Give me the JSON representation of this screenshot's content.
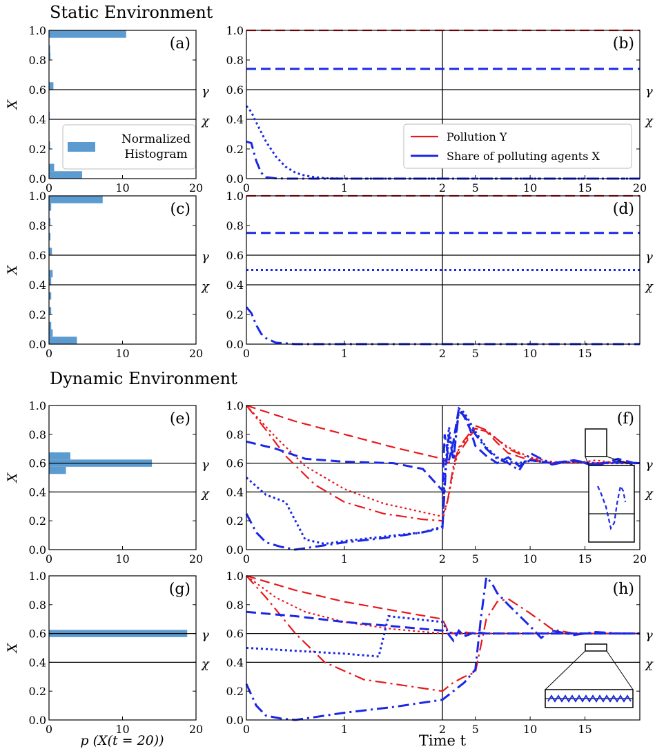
{
  "sections": {
    "static_title": "Static Environment",
    "dynamic_title": "Dynamic Environment"
  },
  "labels": {
    "x_axis_hist": "p (X(t = 20))",
    "x_axis_time": "Time t",
    "y_axis": "X",
    "gamma": "γ",
    "chi": "χ"
  },
  "colors": {
    "hist_bar": "#5b9bd0",
    "pollution": "#e8161b",
    "share": "#1a27e6",
    "axis": "#000000"
  },
  "legends": {
    "hist": "Normalized\nHistogram",
    "pollution": "Pollution Y",
    "share": "Share of polluting agents X"
  },
  "chart_data": [
    {
      "id": "a",
      "type": "bar",
      "orientation": "horizontal",
      "xlim": [
        0,
        20
      ],
      "ylim": [
        0,
        1.0
      ],
      "x_ticks": [
        "0",
        "10",
        "20"
      ],
      "y_ticks": [
        "0.0",
        "0.2",
        "0.4",
        "0.6",
        "0.8",
        "1.0"
      ],
      "bin_width": 0.05,
      "bins": [
        [
          0.0,
          4.5
        ],
        [
          0.05,
          0.7
        ],
        [
          0.2,
          0.15
        ],
        [
          0.4,
          0.1
        ],
        [
          0.6,
          0.6
        ],
        [
          0.8,
          0.2
        ],
        [
          0.85,
          0.15
        ],
        [
          0.95,
          10.5
        ]
      ],
      "h_lines": [
        {
          "y": 0.6,
          "label": "γ"
        },
        {
          "y": 0.4,
          "label": "χ"
        }
      ],
      "legend": "Normalized\nHistogram"
    },
    {
      "id": "b",
      "type": "line",
      "x_ticks": [
        "0",
        "1",
        "2",
        "5",
        "10",
        "15",
        "20"
      ],
      "y_ticks": [
        "0.0",
        "0.2",
        "0.4",
        "0.6",
        "0.8",
        "1.0"
      ],
      "ylim": [
        0,
        1.0
      ],
      "series": [
        {
          "color": "pollution",
          "style": "dashed",
          "x": [
            0,
            20
          ],
          "y": [
            1.0,
            1.0
          ]
        },
        {
          "color": "share",
          "style": "dashed",
          "x": [
            0,
            20
          ],
          "y": [
            0.74,
            0.74
          ]
        },
        {
          "color": "share",
          "style": "dotted",
          "x": [
            0,
            0.05,
            0.1,
            0.2,
            0.3,
            0.4,
            0.5,
            0.6,
            0.7,
            0.8,
            1.0,
            20
          ],
          "y": [
            0.49,
            0.45,
            0.38,
            0.25,
            0.15,
            0.08,
            0.04,
            0.02,
            0.01,
            0.003,
            0.0,
            0.0
          ]
        },
        {
          "color": "share",
          "style": "dashdot",
          "x": [
            0,
            0.05,
            0.1,
            0.15,
            0.2,
            0.3,
            0.4,
            20
          ],
          "y": [
            0.25,
            0.24,
            0.12,
            0.04,
            0.01,
            0.002,
            0.0,
            0.0
          ]
        }
      ],
      "legend": [
        "Pollution Y",
        "Share of polluting agents X"
      ]
    },
    {
      "id": "c",
      "type": "bar",
      "orientation": "horizontal",
      "xlim": [
        0,
        20
      ],
      "ylim": [
        0,
        1.0
      ],
      "x_ticks": [
        "0",
        "10",
        "20"
      ],
      "y_ticks": [
        "0.0",
        "0.2",
        "0.4",
        "0.6",
        "0.8",
        "1.0"
      ],
      "bin_width": 0.05,
      "bins": [
        [
          0.0,
          3.8
        ],
        [
          0.05,
          0.5
        ],
        [
          0.1,
          0.3
        ],
        [
          0.2,
          0.3
        ],
        [
          0.3,
          0.3
        ],
        [
          0.4,
          0.3
        ],
        [
          0.45,
          0.5
        ],
        [
          0.6,
          0.4
        ],
        [
          0.7,
          0.2
        ],
        [
          0.8,
          0.2
        ],
        [
          0.9,
          0.3
        ],
        [
          0.95,
          7.3
        ]
      ],
      "h_lines": [
        {
          "y": 0.6,
          "label": "γ"
        },
        {
          "y": 0.4,
          "label": "χ"
        }
      ]
    },
    {
      "id": "d",
      "type": "line",
      "x_ticks": [
        "0",
        "1",
        "2",
        "5",
        "10",
        "15"
      ],
      "y_ticks": [
        "0.0",
        "0.2",
        "0.4",
        "0.6",
        "0.8",
        "1.0"
      ],
      "ylim": [
        0,
        1.0
      ],
      "series": [
        {
          "color": "pollution",
          "style": "dashed",
          "x": [
            0,
            20
          ],
          "y": [
            1.0,
            1.0
          ]
        },
        {
          "color": "share",
          "style": "dashed",
          "x": [
            0,
            20
          ],
          "y": [
            0.75,
            0.75
          ]
        },
        {
          "color": "share",
          "style": "dotted",
          "x": [
            0,
            20
          ],
          "y": [
            0.5,
            0.5
          ]
        },
        {
          "color": "share",
          "style": "dashdot",
          "x": [
            0,
            0.05,
            0.1,
            0.15,
            0.2,
            0.3,
            0.4,
            0.5,
            20
          ],
          "y": [
            0.25,
            0.21,
            0.13,
            0.07,
            0.04,
            0.01,
            0.005,
            0.0,
            0.0
          ]
        }
      ]
    },
    {
      "id": "e",
      "type": "bar",
      "orientation": "horizontal",
      "xlim": [
        0,
        20
      ],
      "ylim": [
        0,
        1.0
      ],
      "x_ticks": [
        "0",
        "10",
        "20"
      ],
      "y_ticks": [
        "0.0",
        "0.2",
        "0.4",
        "0.6",
        "0.8",
        "1.0"
      ],
      "bin_width": 0.05,
      "bins": [
        [
          0.525,
          2.3
        ],
        [
          0.575,
          14.0
        ],
        [
          0.625,
          2.9
        ]
      ],
      "h_lines": [
        {
          "y": 0.6,
          "label": "γ"
        },
        {
          "y": 0.4,
          "label": "χ"
        }
      ]
    },
    {
      "id": "f",
      "type": "line",
      "x_ticks": [
        "0",
        "1",
        "2",
        "5",
        "10",
        "15",
        "20"
      ],
      "y_ticks": [
        "0.0",
        "0.2",
        "0.4",
        "0.6",
        "0.8",
        "1.0"
      ],
      "ylim": [
        0,
        1.0
      ],
      "series": [
        {
          "color": "pollution",
          "style": "dashed",
          "x": [
            0,
            0.5,
            1.0,
            1.5,
            2.0,
            2.5,
            3.5,
            5,
            6,
            7,
            8,
            10,
            12,
            14,
            16,
            18,
            20
          ],
          "y": [
            1.0,
            0.89,
            0.8,
            0.71,
            0.63,
            0.6,
            0.67,
            0.84,
            0.82,
            0.74,
            0.67,
            0.62,
            0.6,
            0.62,
            0.59,
            0.61,
            0.6
          ]
        },
        {
          "color": "pollution",
          "style": "dotted",
          "x": [
            0,
            0.3,
            0.6,
            1.0,
            1.4,
            1.8,
            2.0,
            2.5,
            3,
            3.5,
            5,
            6,
            8,
            10,
            12,
            14,
            16,
            18,
            20
          ],
          "y": [
            1.0,
            0.78,
            0.58,
            0.42,
            0.32,
            0.26,
            0.23,
            0.34,
            0.55,
            0.7,
            0.84,
            0.82,
            0.71,
            0.64,
            0.61,
            0.6,
            0.62,
            0.6,
            0.6
          ]
        },
        {
          "color": "pollution",
          "style": "dashdot",
          "x": [
            0,
            0.2,
            0.4,
            0.7,
            1.0,
            1.4,
            1.8,
            2.0,
            2.5,
            3,
            3.5,
            5,
            6,
            8,
            10,
            12,
            14,
            16,
            18,
            20
          ],
          "y": [
            1.0,
            0.83,
            0.65,
            0.45,
            0.33,
            0.25,
            0.21,
            0.2,
            0.35,
            0.58,
            0.71,
            0.86,
            0.83,
            0.7,
            0.63,
            0.6,
            0.61,
            0.6,
            0.61,
            0.6
          ]
        },
        {
          "color": "share",
          "style": "dashed",
          "x": [
            0,
            0.3,
            0.6,
            1.0,
            1.5,
            1.8,
            2.0,
            2.2,
            2.6,
            3,
            3.5,
            4,
            4.5,
            5,
            6,
            7,
            8,
            9,
            10,
            12,
            14,
            16,
            18,
            20
          ],
          "y": [
            0.75,
            0.7,
            0.63,
            0.61,
            0.6,
            0.56,
            0.41,
            0.8,
            0.62,
            0.75,
            0.98,
            0.92,
            0.84,
            0.72,
            0.65,
            0.6,
            0.64,
            0.58,
            0.62,
            0.6,
            0.62,
            0.58,
            0.63,
            0.59
          ]
        },
        {
          "color": "share",
          "style": "dotted",
          "x": [
            0,
            0.2,
            0.4,
            0.6,
            0.8,
            1.0,
            1.4,
            1.8,
            2.0,
            2.2,
            2.6,
            3,
            3.5,
            4,
            5,
            6,
            7,
            8,
            9,
            10,
            12,
            14,
            16,
            18,
            20
          ],
          "y": [
            0.5,
            0.38,
            0.33,
            0.07,
            0.04,
            0.06,
            0.09,
            0.12,
            0.16,
            0.5,
            0.85,
            0.63,
            0.98,
            0.95,
            0.82,
            0.71,
            0.64,
            0.61,
            0.6,
            0.62,
            0.6,
            0.61,
            0.6,
            0.6,
            0.6
          ]
        },
        {
          "color": "share",
          "style": "dashdot",
          "x": [
            0,
            0.1,
            0.2,
            0.35,
            0.5,
            0.7,
            1.0,
            1.4,
            1.8,
            2.0,
            2.3,
            2.6,
            3,
            3.5,
            4,
            5,
            6,
            7,
            8,
            9,
            10,
            12,
            14,
            16,
            18,
            20
          ],
          "y": [
            0.25,
            0.12,
            0.05,
            0.02,
            0.0,
            0.02,
            0.05,
            0.08,
            0.12,
            0.15,
            0.55,
            0.8,
            0.62,
            0.96,
            0.93,
            0.8,
            0.7,
            0.63,
            0.6,
            0.55,
            0.67,
            0.59,
            0.62,
            0.59,
            0.61,
            0.6
          ]
        }
      ],
      "inset": true
    },
    {
      "id": "g",
      "type": "bar",
      "orientation": "horizontal",
      "xlim": [
        0,
        20
      ],
      "ylim": [
        0,
        1.0
      ],
      "x_ticks": [
        "0",
        "10",
        "20"
      ],
      "y_ticks": [
        "0.0",
        "0.2",
        "0.4",
        "0.6",
        "0.8",
        "1.0"
      ],
      "bin_width": 0.05,
      "bins": [
        [
          0.575,
          18.8
        ]
      ],
      "h_lines": [
        {
          "y": 0.6,
          "label": "γ"
        },
        {
          "y": 0.4,
          "label": "χ"
        }
      ]
    },
    {
      "id": "h",
      "type": "line",
      "x_ticks": [
        "0",
        "1",
        "2",
        "5",
        "10",
        "15"
      ],
      "y_ticks": [
        "0.0",
        "0.2",
        "0.4",
        "0.6",
        "0.8",
        "1.0"
      ],
      "ylim": [
        0,
        1.0
      ],
      "series": [
        {
          "color": "pollution",
          "style": "dashed",
          "x": [
            0,
            0.5,
            1.0,
            1.5,
            2.0,
            2.5,
            3,
            4,
            5,
            6,
            8,
            10,
            12,
            14,
            16,
            18,
            20
          ],
          "y": [
            1.0,
            0.9,
            0.82,
            0.76,
            0.7,
            0.62,
            0.6,
            0.61,
            0.6,
            0.6,
            0.6,
            0.6,
            0.6,
            0.6,
            0.6,
            0.6,
            0.6
          ]
        },
        {
          "color": "pollution",
          "style": "dotted",
          "x": [
            0,
            0.3,
            0.6,
            1.0,
            1.5,
            2.0,
            2.5,
            3,
            5,
            8,
            12,
            16,
            20
          ],
          "y": [
            1.0,
            0.85,
            0.75,
            0.68,
            0.63,
            0.6,
            0.6,
            0.6,
            0.6,
            0.6,
            0.6,
            0.6,
            0.6
          ]
        },
        {
          "color": "pollution",
          "style": "dashdot",
          "x": [
            0,
            0.2,
            0.5,
            0.8,
            1.2,
            1.6,
            2.0,
            3,
            4,
            5,
            6,
            7,
            8,
            10,
            12,
            14,
            16,
            18,
            20
          ],
          "y": [
            1.0,
            0.85,
            0.6,
            0.4,
            0.28,
            0.24,
            0.2,
            0.26,
            0.3,
            0.33,
            0.7,
            0.82,
            0.84,
            0.74,
            0.63,
            0.6,
            0.6,
            0.6,
            0.6
          ]
        },
        {
          "color": "share",
          "style": "dashed",
          "x": [
            0,
            0.5,
            1.0,
            1.5,
            2.0,
            2.5,
            3,
            3.5,
            4,
            5,
            6,
            8,
            10,
            12,
            14,
            16,
            18,
            20
          ],
          "y": [
            0.75,
            0.72,
            0.68,
            0.65,
            0.62,
            0.6,
            0.55,
            0.62,
            0.58,
            0.61,
            0.6,
            0.6,
            0.6,
            0.6,
            0.6,
            0.6,
            0.6,
            0.6
          ]
        },
        {
          "color": "share",
          "style": "dotted",
          "x": [
            0,
            0.5,
            1.0,
            1.35,
            1.45,
            2.0,
            2.5,
            3,
            4,
            6,
            8,
            10,
            12,
            14,
            16,
            18,
            20
          ],
          "y": [
            0.5,
            0.48,
            0.46,
            0.44,
            0.72,
            0.68,
            0.61,
            0.6,
            0.6,
            0.6,
            0.6,
            0.6,
            0.6,
            0.6,
            0.6,
            0.6,
            0.6
          ]
        },
        {
          "color": "share",
          "style": "dashdot",
          "x": [
            0,
            0.1,
            0.2,
            0.35,
            0.5,
            0.7,
            1.0,
            1.5,
            2.0,
            3,
            4,
            5,
            5.5,
            6,
            6.5,
            7,
            8,
            10,
            11,
            12,
            14,
            16,
            18,
            20
          ],
          "y": [
            0.25,
            0.1,
            0.03,
            0.01,
            0.0,
            0.02,
            0.05,
            0.09,
            0.14,
            0.2,
            0.26,
            0.35,
            0.7,
            0.99,
            0.95,
            0.88,
            0.8,
            0.65,
            0.57,
            0.62,
            0.59,
            0.61,
            0.6,
            0.6
          ]
        }
      ],
      "inset": true
    }
  ]
}
